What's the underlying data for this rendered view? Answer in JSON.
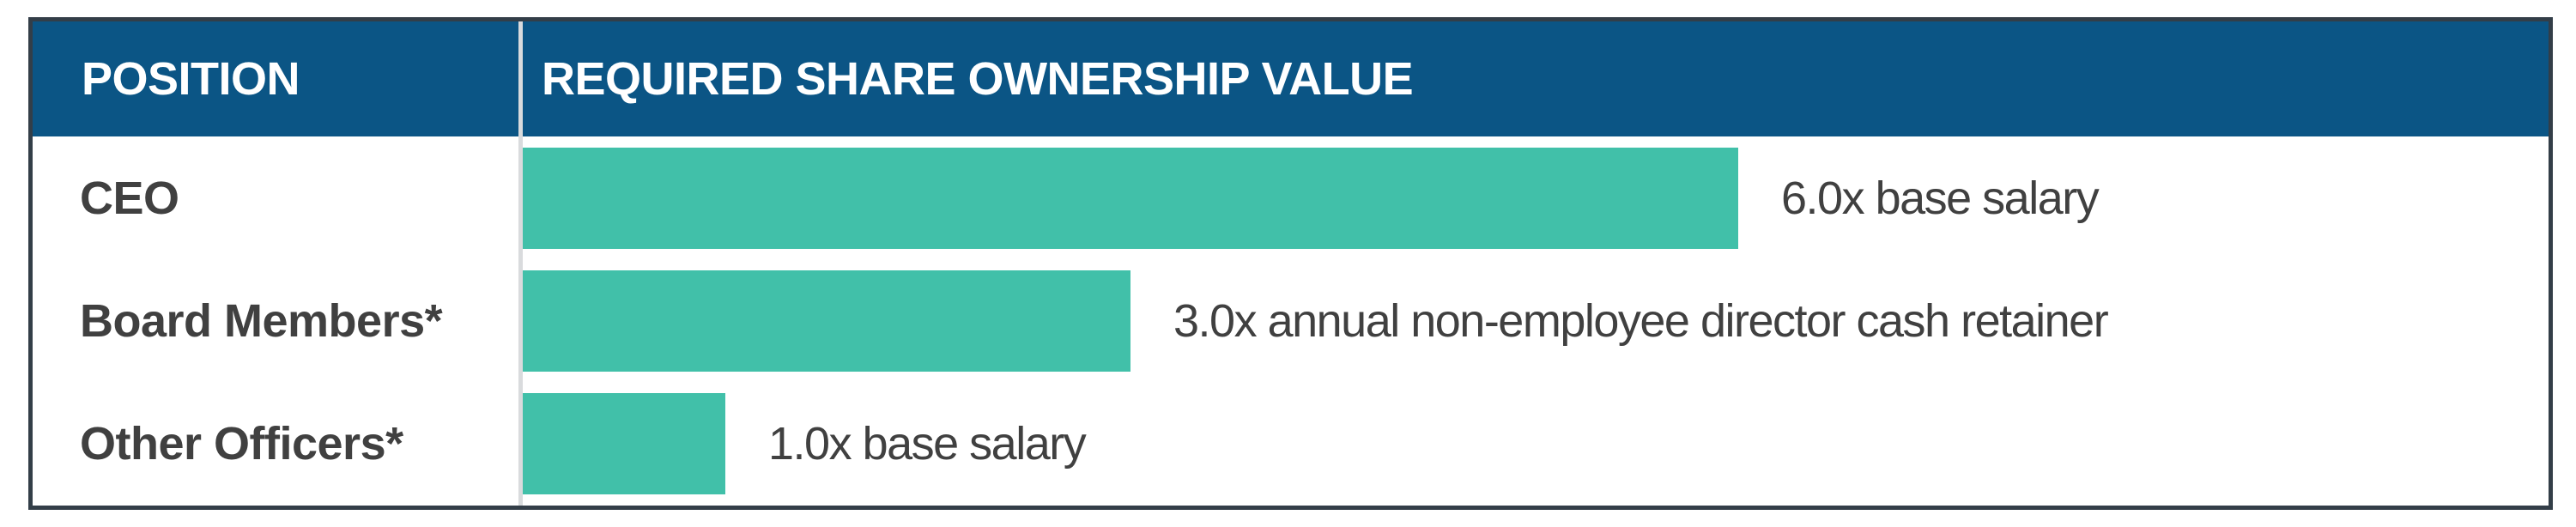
{
  "header": {
    "col1": "POSITION",
    "col2": "REQUIRED SHARE OWNERSHIP VALUE"
  },
  "rows": [
    {
      "position": "CEO",
      "value_label": "6.0x base salary",
      "multiple": 6.0
    },
    {
      "position": "Board Members*",
      "value_label": "3.0x annual non-employee director cash retainer",
      "multiple": 3.0
    },
    {
      "position": "Other Officers*",
      "value_label": "1.0x base salary",
      "multiple": 1.0
    }
  ],
  "colors": {
    "header_bg": "#0B5585",
    "header_text": "#FFFFFF",
    "bar": "#41C0A9",
    "border": "#333E48",
    "separator": "#D9DBDD",
    "label_text": "#404040"
  },
  "chart_data": {
    "type": "bar",
    "orientation": "horizontal",
    "title": "",
    "columns": [
      "POSITION",
      "REQUIRED SHARE OWNERSHIP VALUE"
    ],
    "categories": [
      "CEO",
      "Board Members*",
      "Other Officers*"
    ],
    "values": [
      6.0,
      3.0,
      1.0
    ],
    "value_labels": [
      "6.0x base salary",
      "3.0x annual non-employee director cash retainer",
      "1.0x base salary"
    ],
    "xlabel": "",
    "ylabel": "",
    "xlim": [
      0,
      10
    ],
    "grid": false,
    "legend": false,
    "bar_color": "#41C0A9"
  }
}
